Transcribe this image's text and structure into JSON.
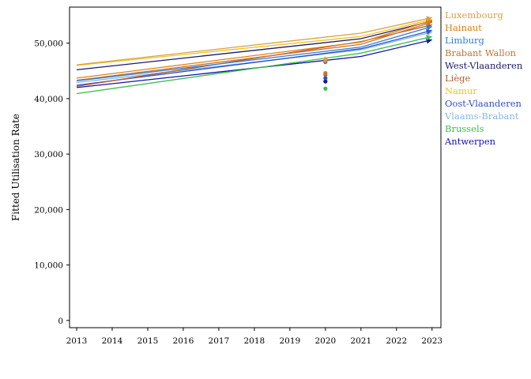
{
  "chart_data": {
    "type": "line",
    "title": "",
    "xlabel": "",
    "ylabel": "Fitted Utilisation Rate",
    "x_ticks": [
      "2013",
      "2014",
      "2015",
      "2016",
      "2017",
      "2018",
      "2019",
      "2020",
      "2021",
      "2022",
      "2023"
    ],
    "y_ticks": [
      "0",
      "10,000",
      "20,000",
      "30,000",
      "40,000",
      "50,000"
    ],
    "xlim": [
      2012.8,
      2023.25
    ],
    "ylim": [
      -1300,
      56500
    ],
    "legend_position": "right",
    "series": [
      {
        "name": "Luxembourg",
        "color": "#d6a243",
        "x": [
          2013,
          2021,
          2023
        ],
        "y": [
          46100,
          51800,
          54600
        ],
        "x_point": 2020,
        "y_point": 47100
      },
      {
        "name": "Hainaut",
        "color": "#df7f0e",
        "x": [
          2013,
          2021,
          2023
        ],
        "y": [
          43700,
          50200,
          54100
        ],
        "x_point": 2020,
        "y_point": 46800
      },
      {
        "name": "Limburg",
        "color": "#2e7fd6",
        "x": [
          2013,
          2021,
          2023
        ],
        "y": [
          43200,
          49300,
          53000
        ],
        "x_point": 2020,
        "y_point": 46600
      },
      {
        "name": "Brabant Wallon",
        "color": "#c8742e",
        "x": [
          2013,
          2021,
          2023
        ],
        "y": [
          43300,
          49800,
          53800
        ],
        "x_point": 2020,
        "y_point": 44600
      },
      {
        "name": "West-Vlaanderen",
        "color": "#1a1a6e",
        "x": [
          2013,
          2021,
          2023
        ],
        "y": [
          45200,
          50800,
          54000
        ],
        "x_point": 2020,
        "y_point": 46900
      },
      {
        "name": "Liège",
        "color": "#b85a2c",
        "x": [
          2013,
          2021,
          2023
        ],
        "y": [
          42200,
          50300,
          53300
        ],
        "x_point": 2020,
        "y_point": 44300
      },
      {
        "name": "Namur",
        "color": "#f2c21d",
        "x": [
          2013,
          2021,
          2023
        ],
        "y": [
          46000,
          51200,
          54300
        ],
        "x_point": 2020,
        "y_point": 47200
      },
      {
        "name": "Oost-Vlaanderen",
        "color": "#2b50c8",
        "x": [
          2013,
          2021,
          2023
        ],
        "y": [
          42400,
          49000,
          52300
        ],
        "x_point": 2020,
        "y_point": 43700
      },
      {
        "name": "Vlaams-Brabant",
        "color": "#86b7e6",
        "x": [
          2013,
          2021,
          2023
        ],
        "y": [
          42900,
          48800,
          52000
        ],
        "x_point": 2020,
        "y_point": 46700
      },
      {
        "name": "Brussels",
        "color": "#3cbf4a",
        "x": [
          2013,
          2021,
          2023
        ],
        "y": [
          40900,
          48200,
          51200
        ],
        "x_point": 2020,
        "y_point": 41800
      },
      {
        "name": "Antwerpen",
        "color": "#1212b0",
        "x": [
          2013,
          2021,
          2023
        ],
        "y": [
          42000,
          47600,
          50600
        ],
        "x_point": 2020,
        "y_point": 43100
      }
    ]
  }
}
